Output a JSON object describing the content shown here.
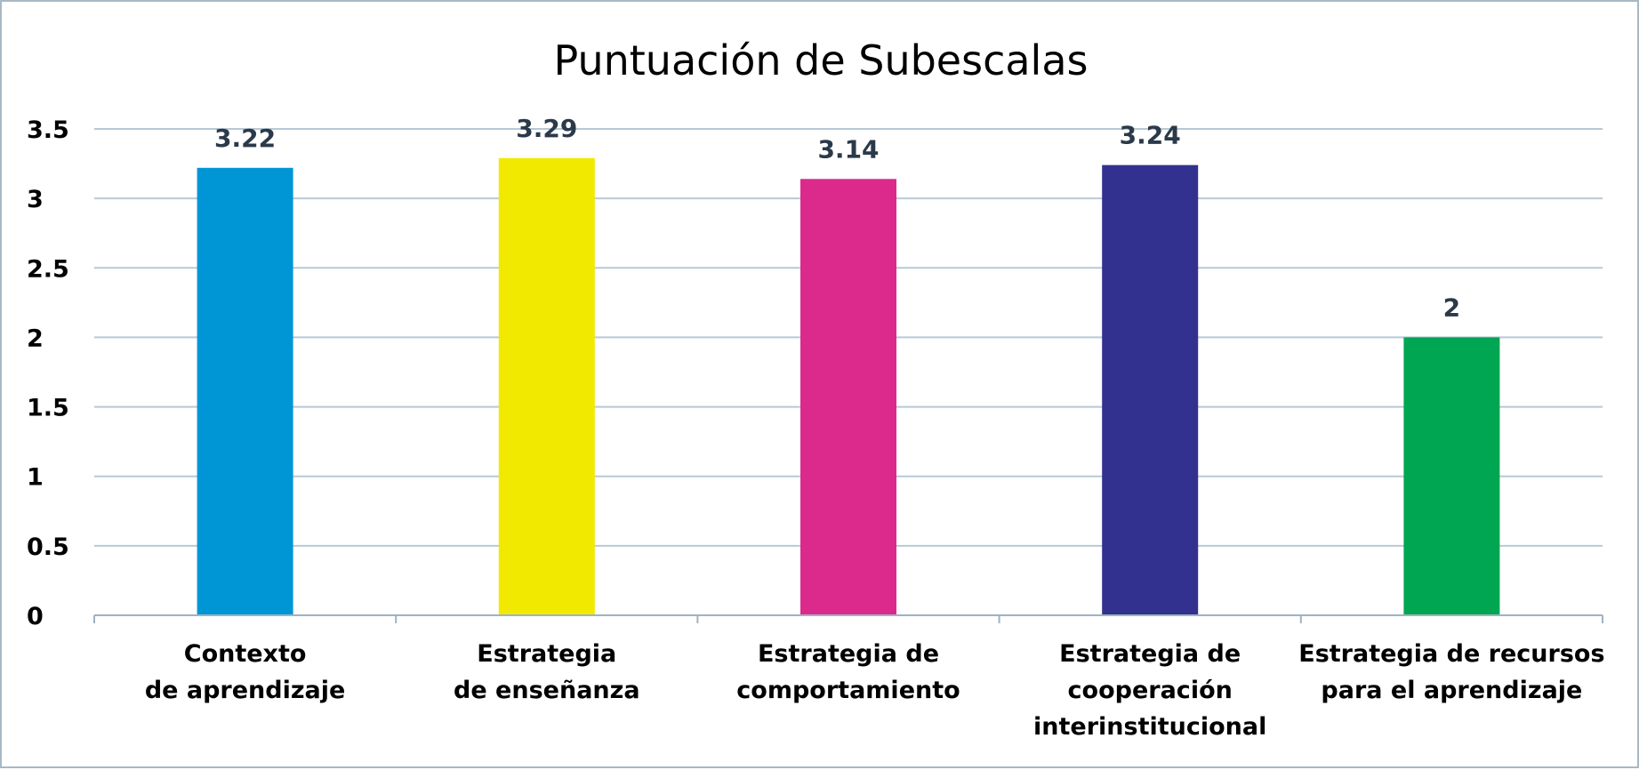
{
  "chart_data": {
    "type": "bar",
    "title": "Puntuación de Subescalas",
    "xlabel": "",
    "ylabel": "",
    "categories": [
      [
        "Contexto",
        "de aprendizaje"
      ],
      [
        "Estrategia",
        "de enseñanza"
      ],
      [
        "Estrategia de",
        "comportamiento"
      ],
      [
        "Estrategia de",
        "cooperación",
        "interinstitucional"
      ],
      [
        "Estrategia de recursos",
        "para el aprendizaje"
      ]
    ],
    "values": [
      3.22,
      3.29,
      3.14,
      3.24,
      2
    ],
    "value_labels": [
      "3.22",
      "3.29",
      "3.14",
      "3.24",
      "2"
    ],
    "bar_colors": [
      "#0096d6",
      "#f2e900",
      "#dc2a8c",
      "#32318f",
      "#00a651"
    ],
    "ylim": [
      0,
      3.5
    ],
    "yticks": [
      0,
      0.5,
      1,
      1.5,
      2,
      2.5,
      3,
      3.5
    ],
    "ytick_labels": [
      "0",
      "0.5",
      "1",
      "1.5",
      "2",
      "2.5",
      "3",
      "3.5"
    ],
    "grid": true,
    "legend": "none"
  }
}
